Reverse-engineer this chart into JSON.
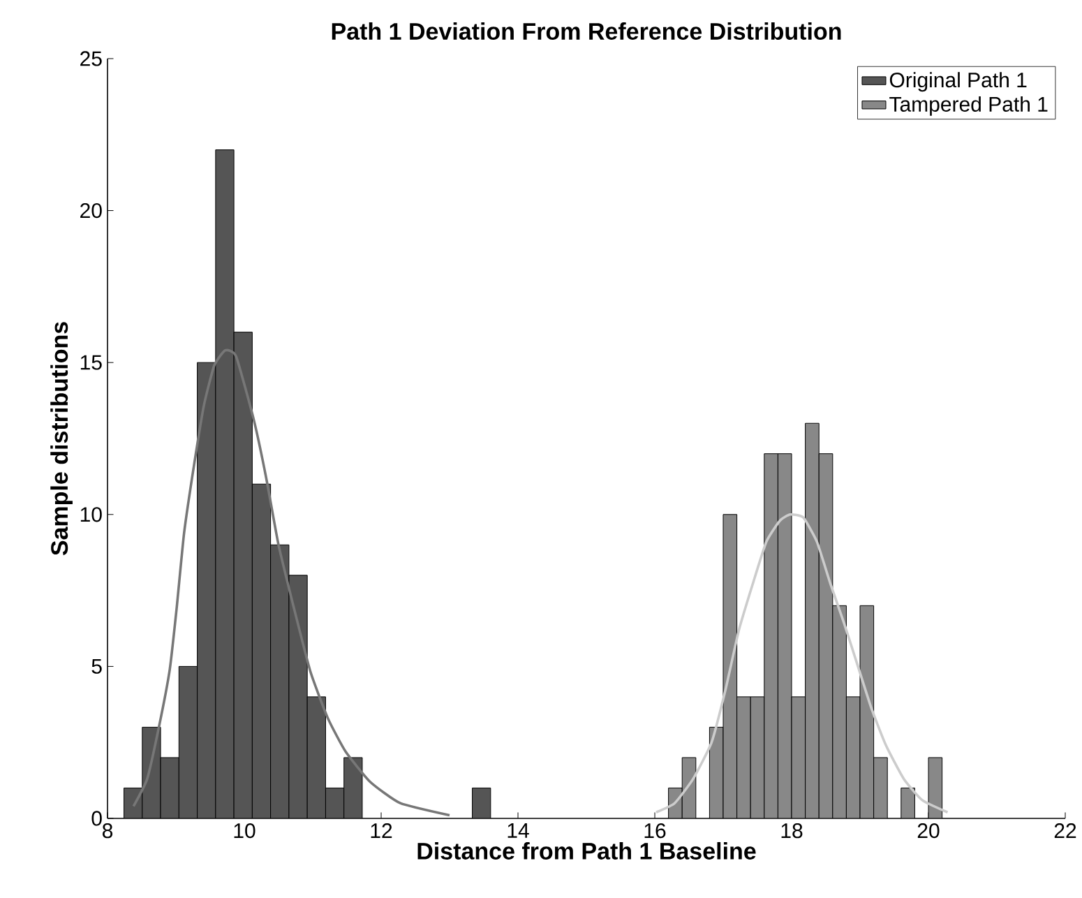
{
  "chart_data": {
    "type": "histogram",
    "title": "Path 1 Deviation From Reference Distribution",
    "xlabel": "Distance from Path 1 Baseline",
    "ylabel": "Sample distributions",
    "xlim": [
      8,
      22
    ],
    "xticks": [
      8,
      10,
      12,
      14,
      16,
      18,
      20,
      22
    ],
    "ylim": [
      0,
      25
    ],
    "yticks": [
      0,
      5,
      10,
      15,
      20,
      25
    ],
    "grid": false,
    "legend": "top right",
    "series": [
      {
        "name": "Original Path 1",
        "color": "#555555",
        "bins": [
          8.24,
          8.508,
          8.776,
          9.044,
          9.312,
          9.58,
          9.848,
          10.116,
          10.384,
          10.652,
          10.92,
          11.188,
          11.456,
          11.724,
          11.992,
          12.26,
          12.528,
          12.796,
          13.064,
          13.332,
          13.6
        ],
        "values": [
          1,
          3,
          2,
          5,
          15,
          22,
          16,
          11,
          9,
          8,
          4,
          1,
          2,
          0,
          0,
          0,
          0,
          0,
          0,
          1
        ]
      },
      {
        "name": "Tampered Path 1",
        "color": "#888888",
        "bins": [
          16.2,
          16.4,
          16.6,
          16.8,
          17.0,
          17.2,
          17.4,
          17.6,
          17.8,
          18.0,
          18.2,
          18.4,
          18.6,
          18.8,
          19.0,
          19.2,
          19.4,
          19.6,
          19.8,
          20.0,
          20.2
        ],
        "values": [
          1,
          2,
          0,
          3,
          10,
          4,
          4,
          12,
          12,
          4,
          13,
          12,
          7,
          4,
          7,
          2,
          0,
          1,
          0,
          2
        ]
      },
      {
        "type": "line",
        "color": "#777777",
        "x": [
          8.38,
          8.58,
          8.76,
          8.91,
          9.01,
          9.12,
          9.27,
          9.41,
          9.56,
          9.72,
          9.88,
          10.14,
          10.32,
          10.5,
          10.75,
          10.97,
          11.22,
          11.48,
          11.84,
          12.28,
          13.0
        ],
        "values": [
          0.4,
          1.3,
          3.1,
          4.9,
          6.9,
          9.4,
          11.7,
          13.6,
          14.9,
          15.4,
          15.2,
          13.1,
          11.2,
          9.0,
          6.7,
          4.8,
          3.3,
          2.2,
          1.2,
          0.5,
          0.1
        ]
      },
      {
        "type": "line",
        "color": "#cccccc",
        "x": [
          16.02,
          16.29,
          16.56,
          16.83,
          17.03,
          17.23,
          17.43,
          17.63,
          17.83,
          17.98,
          18.17,
          18.37,
          18.57,
          18.77,
          18.97,
          19.17,
          19.38,
          19.64,
          19.91,
          20.28
        ],
        "values": [
          0.2,
          0.5,
          1.3,
          2.5,
          4.2,
          6.2,
          7.7,
          9.1,
          9.8,
          10.0,
          9.9,
          9.1,
          7.7,
          6.4,
          5.0,
          3.6,
          2.4,
          1.3,
          0.6,
          0.2
        ]
      }
    ]
  }
}
